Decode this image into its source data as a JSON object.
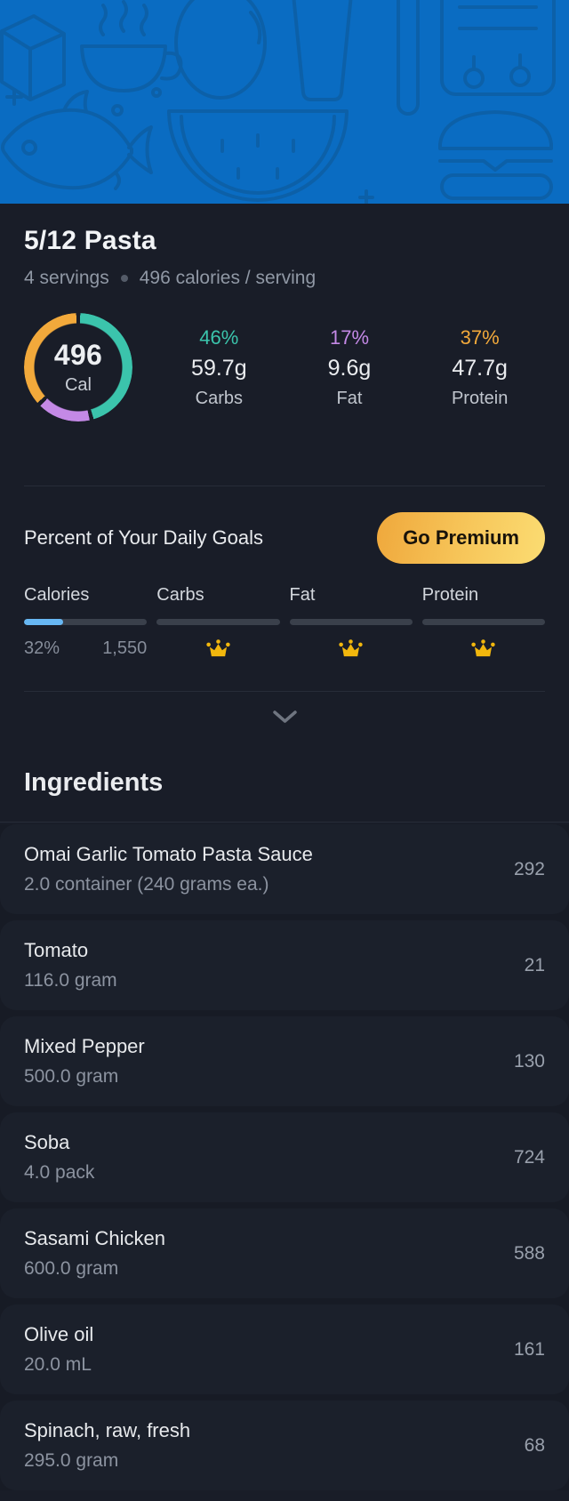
{
  "banner": {
    "background_color": "#0A6CC2",
    "illustration_color": "#0D5FA6",
    "description": "food-line-art-pattern"
  },
  "colors": {
    "carbs": "#3BC4AC",
    "fat": "#C489E6",
    "protein": "#F2A93B",
    "progress_fill": "#67B7F3",
    "crown_gold": "#F2B70D",
    "premium_gradient_start": "#EFA83C",
    "premium_gradient_end": "#FBDC72"
  },
  "header": {
    "title": "5/12 Pasta",
    "servings": "4 servings",
    "calories_per_serving": "496 calories / serving"
  },
  "summary": {
    "calories": "496",
    "cal_label": "Cal",
    "macros": [
      {
        "name": "Carbs",
        "percent": 46,
        "percent_label": "46%",
        "grams": "59.7g",
        "color": "#3BC4AC"
      },
      {
        "name": "Fat",
        "percent": 17,
        "percent_label": "17%",
        "grams": "9.6g",
        "color": "#C489E6"
      },
      {
        "name": "Protein",
        "percent": 37,
        "percent_label": "37%",
        "grams": "47.7g",
        "color": "#F2A93B"
      }
    ]
  },
  "daily_goals": {
    "title": "Percent of Your Daily Goals",
    "premium_label": "Go Premium",
    "items": [
      {
        "label": "Calories",
        "locked": false,
        "fill_percent": 32,
        "percent_label": "32%",
        "goal_value": "1,550"
      },
      {
        "label": "Carbs",
        "locked": true,
        "fill_percent": 0
      },
      {
        "label": "Fat",
        "locked": true,
        "fill_percent": 0
      },
      {
        "label": "Protein",
        "locked": true,
        "fill_percent": 0
      }
    ]
  },
  "ingredients": {
    "title": "Ingredients",
    "items": [
      {
        "name": "Omai Garlic Tomato Pasta Sauce",
        "amount": "2.0 container (240 grams ea.)",
        "calories": "292"
      },
      {
        "name": "Tomato",
        "amount": "116.0 gram",
        "calories": "21"
      },
      {
        "name": "Mixed Pepper",
        "amount": "500.0 gram",
        "calories": "130"
      },
      {
        "name": "Soba",
        "amount": "4.0 pack",
        "calories": "724"
      },
      {
        "name": "Sasami Chicken",
        "amount": "600.0 gram",
        "calories": "588"
      },
      {
        "name": "Olive oil",
        "amount": "20.0 mL",
        "calories": "161"
      },
      {
        "name": "Spinach, raw, fresh",
        "amount": "295.0 gram",
        "calories": "68"
      }
    ]
  },
  "chart_data": {
    "type": "pie",
    "title": "496 Cal macro split",
    "categories": [
      "Carbs",
      "Fat",
      "Protein"
    ],
    "values": [
      46,
      17,
      37
    ],
    "value_labels": [
      "59.7g",
      "9.6g",
      "47.7g"
    ],
    "colors": [
      "#3BC4AC",
      "#C489E6",
      "#F2A93B"
    ],
    "center_label": "496 Cal"
  }
}
